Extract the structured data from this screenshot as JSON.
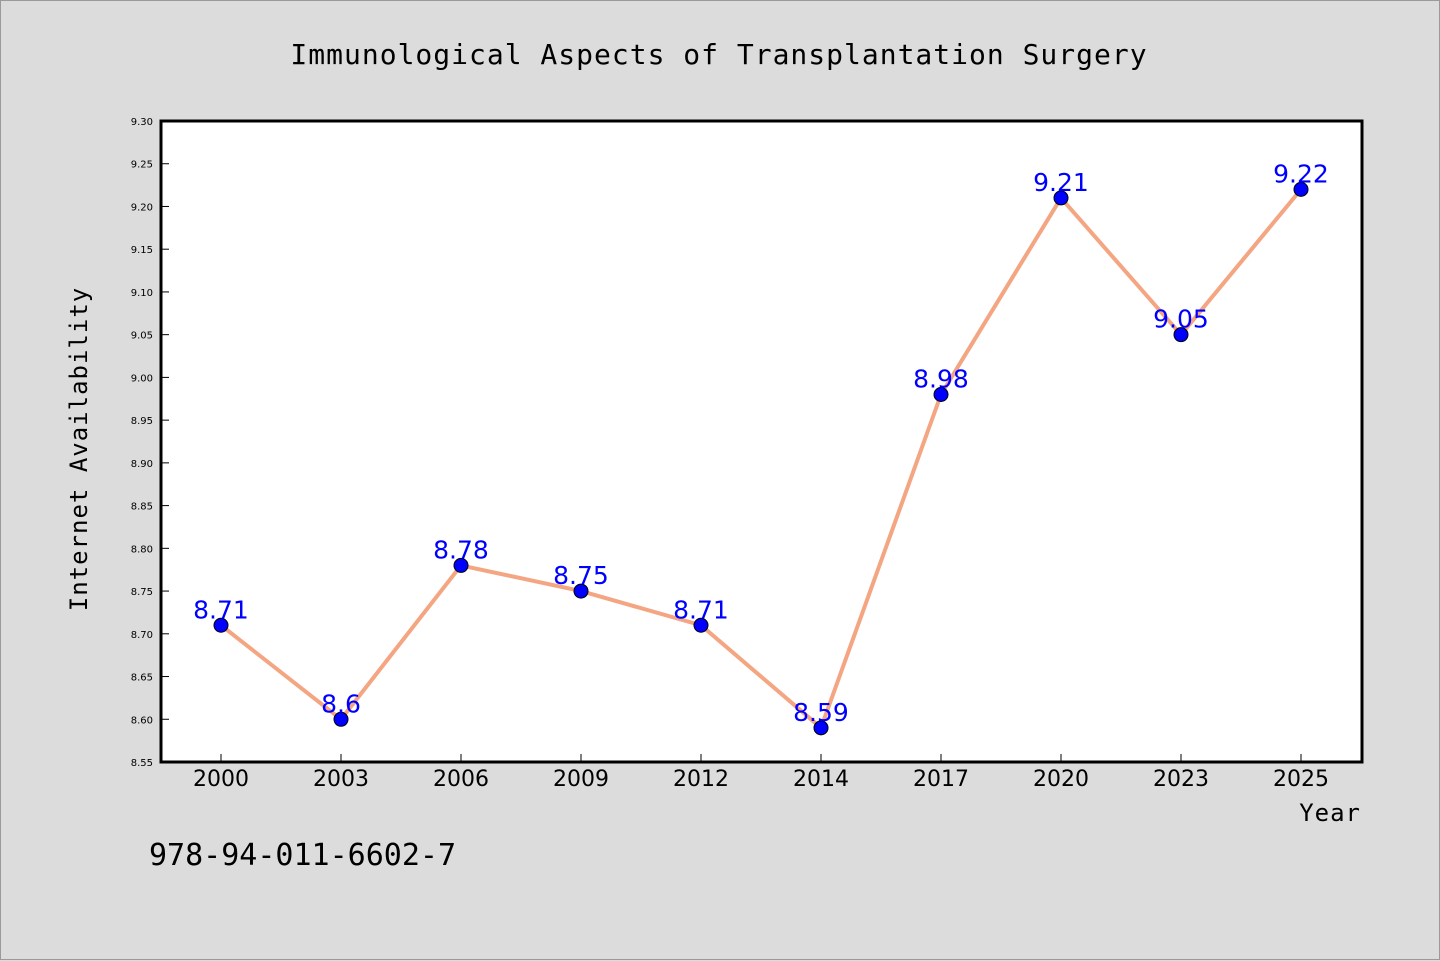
{
  "chart_data": {
    "type": "line",
    "title": "Immunological Aspects of Transplantation Surgery",
    "xlabel": "Year",
    "ylabel": "Internet Availability",
    "categories": [
      "2000",
      "2003",
      "2006",
      "2009",
      "2012",
      "2014",
      "2017",
      "2020",
      "2023",
      "2025"
    ],
    "series": [
      {
        "values": [
          8.71,
          8.6,
          8.78,
          8.75,
          8.71,
          8.59,
          8.98,
          9.21,
          9.05,
          9.22
        ],
        "labels": [
          "8.71",
          "8.6",
          "8.78",
          "8.75",
          "8.71",
          "8.59",
          "8.98",
          "9.21",
          "9.05",
          "9.22"
        ],
        "line_color": "#f4a582",
        "marker_color": "#0000ff"
      }
    ],
    "ylim": [
      8.55,
      9.3
    ],
    "yticks": [
      "8.55",
      "8.60",
      "8.65",
      "8.70",
      "8.75",
      "8.80",
      "8.85",
      "8.90",
      "8.95",
      "9.00",
      "9.05",
      "9.10",
      "9.15",
      "9.20",
      "9.25",
      "9.30"
    ],
    "grid": false,
    "legend": "none"
  },
  "footer": {
    "isbn": "978-94-011-6602-7"
  },
  "colors": {
    "background": "#dcdcdc",
    "plot_background": "#ffffff",
    "label_color": "#0000ff"
  }
}
